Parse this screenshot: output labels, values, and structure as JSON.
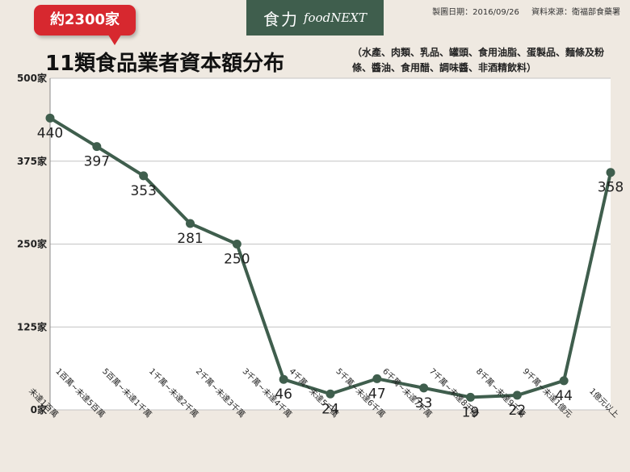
{
  "header": {
    "badge": "約2300家",
    "logo_zh": "食力",
    "logo_en": "foodNEXT",
    "date": "製圖日期：2016/09/26",
    "source": "資料來源：衛福部食藥署",
    "title": "11類食品業者資本額分布",
    "subtitle": "（水產、肉類、乳品、罐頭、食用油脂、蛋製品、麵條及粉條、醬油、食用醋、調味醬、非酒精飲料）"
  },
  "colors": {
    "line": "#3f5e4d",
    "badge": "#d7282f",
    "background": "#efe9e1"
  },
  "chart_data": {
    "type": "line",
    "title": "11類食品業者資本額分布",
    "categories": [
      "未達1百萬",
      "1百萬~未達5百萬",
      "5百萬~未達1千萬",
      "1千萬~未達2千萬",
      "2千萬~未達3千萬",
      "3千萬~未達4千萬",
      "4千萬~未達5千萬",
      "5千萬~未達6千萬",
      "6千萬~未達7千萬",
      "7千萬~未達8千萬",
      "8千萬~未達9千萬",
      "9千萬~未達1億元",
      "1億元以上"
    ],
    "values": [
      440,
      397,
      353,
      281,
      250,
      46,
      24,
      47,
      33,
      19,
      22,
      44,
      358
    ],
    "ylim": [
      0,
      500
    ],
    "yticks": [
      0,
      125,
      250,
      375,
      500
    ],
    "ytick_labels": [
      "0家",
      "125家",
      "250家",
      "375家",
      "500家"
    ],
    "grid": true
  }
}
